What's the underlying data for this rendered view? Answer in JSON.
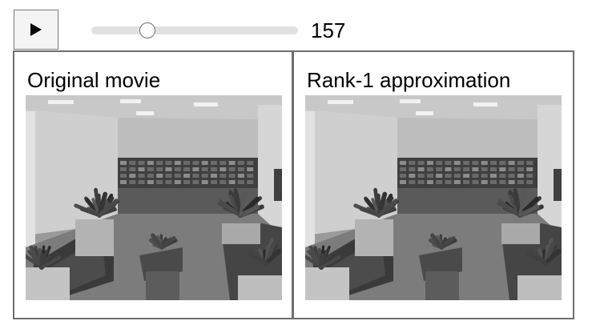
{
  "controls": {
    "play_icon": "play-triangle-icon",
    "frame_value": "157",
    "slider_level": 0.27
  },
  "panels": [
    {
      "title": "Original movie"
    },
    {
      "title": "Rank-1 approximation"
    }
  ],
  "colors": {
    "panel_border": "#6e6e6e",
    "slider_track": "#e1e1e1",
    "button_bg": "#f4f4f4"
  }
}
